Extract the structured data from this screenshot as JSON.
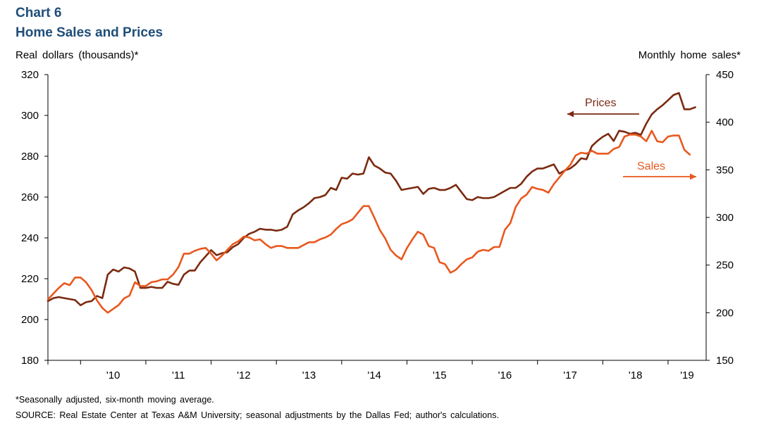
{
  "header": {
    "chart_label": "Chart 6",
    "title": "Home Sales and Prices"
  },
  "axes": {
    "left_title": "Real dollars (thousands)*",
    "right_title": "Monthly home sales*"
  },
  "footer": {
    "note": "*Seasonally adjusted, six-month moving average.",
    "source": "SOURCE: Real Estate Center at Texas A&M University; seasonal adjustments by the Dallas Fed; author's calculations."
  },
  "colors": {
    "prices": "#7a2a10",
    "sales": "#e8581e",
    "axis": "#000000"
  },
  "chart_data": {
    "type": "line",
    "title": "Home Sales and Prices",
    "x_start": "2009-07",
    "x_end": "2019-08",
    "x_ticks": [
      "'10",
      "'11",
      "'12",
      "'13",
      "'14",
      "'15",
      "'16",
      "'17",
      "'18",
      "'19"
    ],
    "y_left": {
      "label": "Real dollars (thousands)*",
      "min": 180,
      "max": 320,
      "step": 20
    },
    "y_right": {
      "label": "Monthly home sales*",
      "min": 150,
      "max": 450,
      "step": 50
    },
    "grid": false,
    "annotations": [
      {
        "text": "Prices",
        "arrow": "left"
      },
      {
        "text": "Sales",
        "arrow": "right"
      }
    ],
    "series": [
      {
        "name": "Prices",
        "axis": "left",
        "values": [
          209,
          210.5,
          211,
          210.5,
          210,
          209.5,
          207,
          208.5,
          209,
          211.5,
          210.5,
          222,
          224.5,
          223.5,
          225.5,
          225,
          223.5,
          215.5,
          215.5,
          216,
          215.5,
          215.5,
          218.5,
          217.5,
          217,
          222,
          224,
          224,
          228,
          231,
          234,
          231.5,
          232.5,
          233,
          235.5,
          237,
          240,
          242,
          243,
          244.5,
          244,
          244,
          243.5,
          244,
          245.5,
          251.5,
          253.5,
          255,
          257,
          259.5,
          260,
          261,
          264.5,
          263.5,
          269.5,
          269,
          271.5,
          271,
          271.5,
          279.5,
          275.5,
          274,
          272,
          271.5,
          268,
          263.5,
          264,
          264.5,
          265,
          261.5,
          264,
          264.5,
          263.5,
          263.5,
          264.5,
          266,
          262.5,
          259,
          258.5,
          260,
          259.5,
          259.5,
          260,
          261.5,
          263,
          264.5,
          264.5,
          266.5,
          270,
          272.5,
          274,
          274,
          275,
          276,
          271.5,
          273,
          274,
          276,
          279,
          278.5,
          285,
          287.5,
          289.5,
          291,
          287.5,
          292.5,
          292,
          291,
          291.5,
          290.5,
          296,
          300.5,
          303,
          305,
          307.5,
          310,
          311,
          303,
          303,
          304
        ]
      },
      {
        "name": "Sales",
        "axis": "right",
        "values": [
          214,
          220,
          226,
          231,
          229,
          237,
          237,
          232,
          224,
          213,
          205,
          200,
          204,
          208,
          215,
          218,
          232,
          228,
          228,
          232,
          233,
          235,
          235,
          240,
          248,
          262,
          262,
          265,
          267,
          268,
          262,
          255,
          260,
          266,
          272,
          275,
          280,
          279,
          276,
          277,
          272,
          268,
          270,
          270,
          268,
          268,
          268,
          271,
          274,
          274,
          277,
          279,
          282,
          288,
          293,
          295,
          298,
          305,
          312,
          312,
          300,
          287,
          278,
          266,
          260,
          256,
          268,
          277,
          285,
          282,
          270,
          268,
          253,
          251,
          242,
          245,
          251,
          256,
          258,
          264,
          266,
          265,
          269,
          269,
          287,
          294,
          311,
          320,
          324,
          332,
          330,
          329,
          326,
          335,
          342,
          349,
          355,
          365,
          368,
          367,
          370,
          367,
          367,
          367,
          372,
          374,
          385,
          387,
          387,
          385,
          380,
          391,
          380,
          379,
          385,
          386,
          386,
          371,
          366
        ]
      }
    ]
  }
}
